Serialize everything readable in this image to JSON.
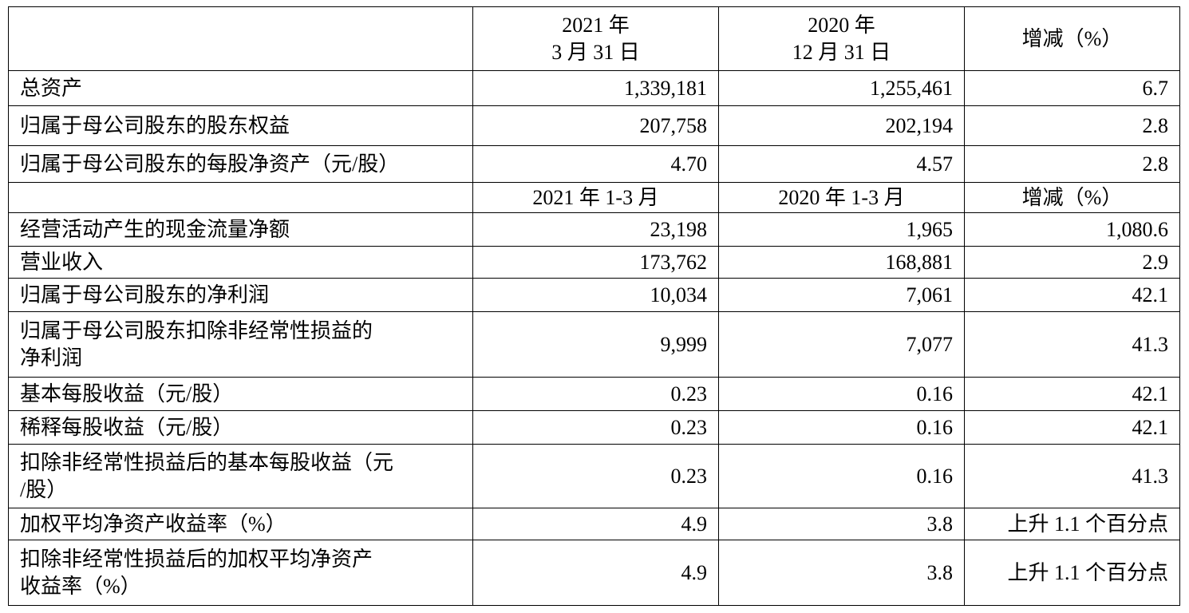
{
  "table": {
    "sections": [
      {
        "header": [
          "",
          "2021 年\n3 月 31 日",
          "2020 年\n12 月 31 日",
          "增减（%）"
        ],
        "rows": [
          [
            "总资产",
            "1,339,181",
            "1,255,461",
            "6.7"
          ],
          [
            "归属于母公司股东的股东权益",
            "207,758",
            "202,194",
            "2.8"
          ],
          [
            "归属于母公司股东的每股净资产（元/股）",
            "4.70",
            "4.57",
            "2.8"
          ]
        ]
      },
      {
        "header": [
          "",
          "2021 年 1-3 月",
          "2020 年 1-3 月",
          "增减（%）"
        ],
        "rows": [
          [
            "经营活动产生的现金流量净额",
            "23,198",
            "1,965",
            "1,080.6"
          ],
          [
            "营业收入",
            "173,762",
            "168,881",
            "2.9"
          ],
          [
            "归属于母公司股东的净利润",
            "10,034",
            "7,061",
            "42.1"
          ],
          [
            "归属于母公司股东扣除非经常性损益的\n净利润",
            "9,999",
            "7,077",
            "41.3"
          ],
          [
            "基本每股收益（元/股）",
            "0.23",
            "0.16",
            "42.1"
          ],
          [
            "稀释每股收益（元/股）",
            "0.23",
            "0.16",
            "42.1"
          ],
          [
            "扣除非经常性损益后的基本每股收益（元\n/股）",
            "0.23",
            "0.16",
            "41.3"
          ],
          [
            "加权平均净资产收益率（%）",
            "4.9",
            "3.8",
            "上升 1.1 个百分点"
          ],
          [
            "扣除非经常性损益后的加权平均净资产\n收益率（%）",
            "4.9",
            "3.8",
            "上升 1.1 个百分点"
          ]
        ]
      }
    ]
  }
}
